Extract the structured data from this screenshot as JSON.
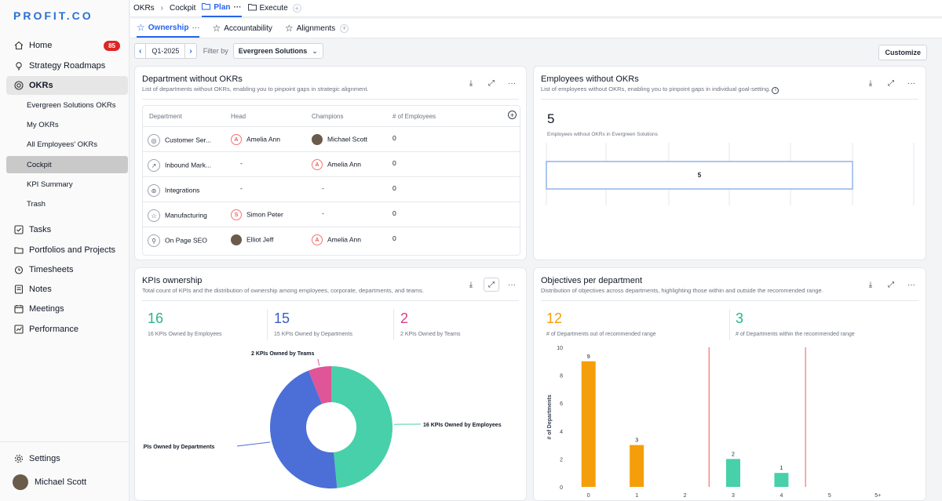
{
  "app": {
    "logo": "PROFIT.CO"
  },
  "sidebar": {
    "items": [
      {
        "label": "Home",
        "icon": "home-icon",
        "badge": "85"
      },
      {
        "label": "Strategy Roadmaps",
        "icon": "bulb-icon"
      },
      {
        "label": "OKRs",
        "icon": "target-icon"
      },
      {
        "label": "Tasks",
        "icon": "checkbox-icon"
      },
      {
        "label": "Portfolios and Projects",
        "icon": "folder-icon"
      },
      {
        "label": "Timesheets",
        "icon": "clock-icon"
      },
      {
        "label": "Notes",
        "icon": "note-icon"
      },
      {
        "label": "Meetings",
        "icon": "calendar-icon"
      },
      {
        "label": "Performance",
        "icon": "chart-icon"
      }
    ],
    "okr_sub": [
      "Evergreen Solutions OKRs",
      "My OKRs",
      "All Employees' OKRs",
      "Cockpit",
      "KPI Summary",
      "Trash"
    ],
    "settings": "Settings",
    "user": "Michael Scott"
  },
  "breadcrumb": {
    "root": "OKRs",
    "page": "Cockpit",
    "plan": "Plan",
    "execute": "Execute"
  },
  "tabs": [
    "Ownership",
    "Accountability",
    "Alignments"
  ],
  "filters": {
    "quarter": "Q1-2025",
    "filter_by": "Filter by",
    "org": "Evergreen Solutions",
    "customize": "Customize"
  },
  "dept_card": {
    "title": "Department without OKRs",
    "subtitle": "List of departments without OKRs, enabling you to pinpoint gaps in strategic alignment.",
    "headers": [
      "Department",
      "Head",
      "Champions",
      "# of Employees"
    ],
    "rows": [
      {
        "dept": "Customer Ser...",
        "head": "Amelia Ann",
        "head_initial": "A",
        "champion": "Michael Scott",
        "champion_initial": "",
        "employees": "0"
      },
      {
        "dept": "Inbound Mark...",
        "head": "-",
        "head_initial": "",
        "champion": "Amelia Ann",
        "champion_initial": "A",
        "employees": "0"
      },
      {
        "dept": "Integrations",
        "head": "-",
        "head_initial": "",
        "champion": "-",
        "champion_initial": "",
        "employees": "0"
      },
      {
        "dept": "Manufacturing",
        "head": "Simon Peter",
        "head_initial": "S",
        "champion": "-",
        "champion_initial": "",
        "employees": "0"
      },
      {
        "dept": "On Page SEO",
        "head": "Elliot Jeff",
        "head_initial": "",
        "champion": "Amelia Ann",
        "champion_initial": "A",
        "employees": "0"
      }
    ]
  },
  "emp_card": {
    "title": "Employees without OKRs",
    "subtitle": "List of employees without OKRs, enabling you to pinpoint gaps in individual goal-setting.",
    "count": "5",
    "count_label": "Employees without OKRs in Evergreen Solutions",
    "bar_value": "5"
  },
  "kpi_card": {
    "title": "KPIs ownership",
    "subtitle": "Total count of KPIs and the distribution of ownership among employees, corporate, departments, and teams.",
    "stats": [
      {
        "value": "16",
        "label": "16 KPIs Owned by Employees",
        "color": "#2bb38a"
      },
      {
        "value": "15",
        "label": "15 KPIs Owned by Departments",
        "color": "#3b5cc7"
      },
      {
        "value": "2",
        "label": "2 KPIs Owned by Teams",
        "color": "#db3f86"
      }
    ]
  },
  "obj_card": {
    "title": "Objectives per department",
    "subtitle": "Distribution of objectives across departments, highlighting those within and outside the recommended range.",
    "stats": [
      {
        "value": "12",
        "label": "# of Departments out of recommended range",
        "color": "#f59e0b"
      },
      {
        "value": "3",
        "label": "# of Departments within the recommended range",
        "color": "#2bb38a"
      }
    ]
  },
  "chart_data": [
    {
      "type": "pie",
      "labels": [
        "16 KPIs Owned by Employees",
        "15 KPIs Owned by Departments",
        "2 KPIs Owned by Teams"
      ],
      "values": [
        16,
        15,
        2
      ],
      "colors": [
        "#47d0aa",
        "#4b6fd6",
        "#df5597"
      ]
    },
    {
      "type": "bar",
      "categories": [
        "0",
        "1",
        "2",
        "3",
        "4",
        "5",
        "5+"
      ],
      "values": [
        9,
        3,
        0,
        2,
        1,
        0,
        0
      ],
      "colors": [
        "#f59e0b",
        "#f59e0b",
        "#f59e0b",
        "#47d0aa",
        "#47d0aa",
        "#f59e0b",
        "#f59e0b"
      ],
      "ylabel": "# of Departments",
      "ylim": [
        0,
        10
      ],
      "yticks": [
        "0",
        "2",
        "4",
        "6",
        "8",
        "10"
      ],
      "range_lines": [
        "2.5",
        "4.5"
      ]
    }
  ]
}
